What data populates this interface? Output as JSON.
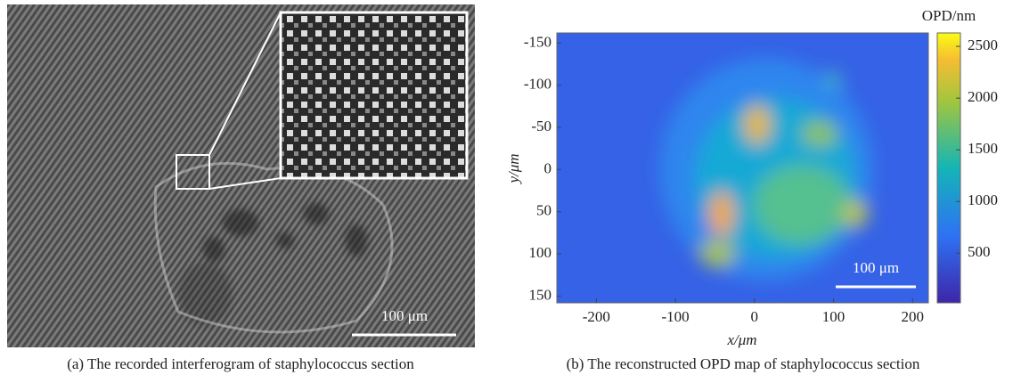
{
  "panel_a": {
    "scale_bar": "100 μm",
    "caption": "(a) The recorded interferogram of staphylococcus section"
  },
  "panel_b": {
    "y_label": "y/μm",
    "x_label": "x/μm",
    "scale_bar": "100 μm",
    "colorbar_label": "OPD/nm",
    "xlim": [
      -250,
      220
    ],
    "xticks": [
      -200,
      -100,
      0,
      100,
      200
    ],
    "ylim": [
      -162,
      158
    ],
    "yticks": [
      -150,
      -100,
      -50,
      0,
      50,
      100,
      150
    ],
    "clim": [
      20,
      2630
    ],
    "cticks": [
      500,
      1000,
      1500,
      2000,
      2500
    ],
    "caption": "(b) The reconstructed OPD map of staphylococcus section"
  }
}
